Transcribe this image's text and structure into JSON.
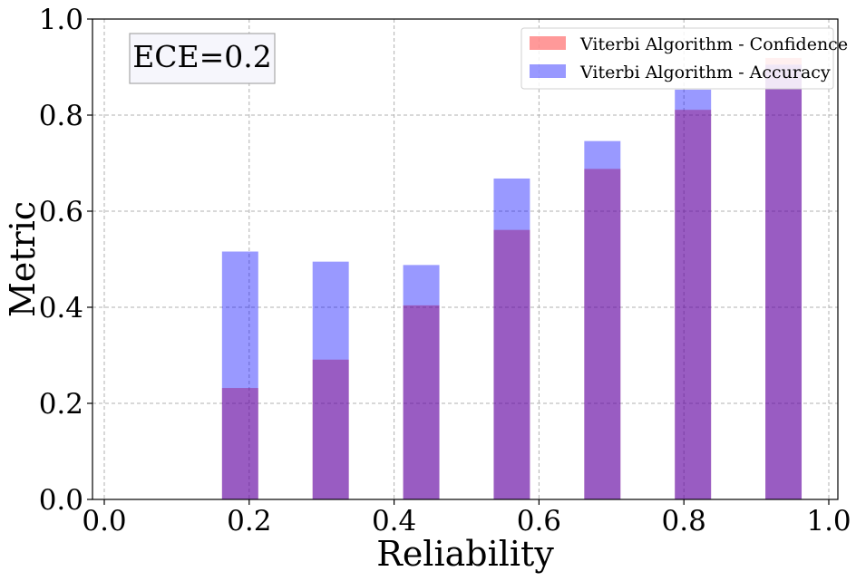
{
  "chart_data": {
    "type": "bar",
    "xlabel": "Reliability",
    "ylabel": "Metric",
    "xlim": [
      0.0,
      1.0
    ],
    "ylim": [
      0.0,
      1.0
    ],
    "xticks": [
      "0.0",
      "0.2",
      "0.4",
      "0.6",
      "0.8",
      "1.0"
    ],
    "yticks": [
      "0.0",
      "0.2",
      "0.4",
      "0.6",
      "0.8",
      "1.0"
    ],
    "grid": true,
    "legend_position": "top-right",
    "annotation": "ECE=0.2",
    "bin_centers": [
      0.1875,
      0.3125,
      0.4375,
      0.5625,
      0.6875,
      0.8125,
      0.9375
    ],
    "bar_width": 0.0625,
    "series": [
      {
        "name": "Viterbi Algorithm - Confidence",
        "color": "#ff0000",
        "alpha": 0.4,
        "values": [
          0.232,
          0.291,
          0.404,
          0.561,
          0.688,
          0.811,
          0.919
        ]
      },
      {
        "name": "Viterbi Algorithm - Accuracy",
        "color": "#0000ff",
        "alpha": 0.4,
        "values": [
          0.516,
          0.495,
          0.488,
          0.668,
          0.746,
          0.853,
          0.905
        ]
      }
    ]
  }
}
